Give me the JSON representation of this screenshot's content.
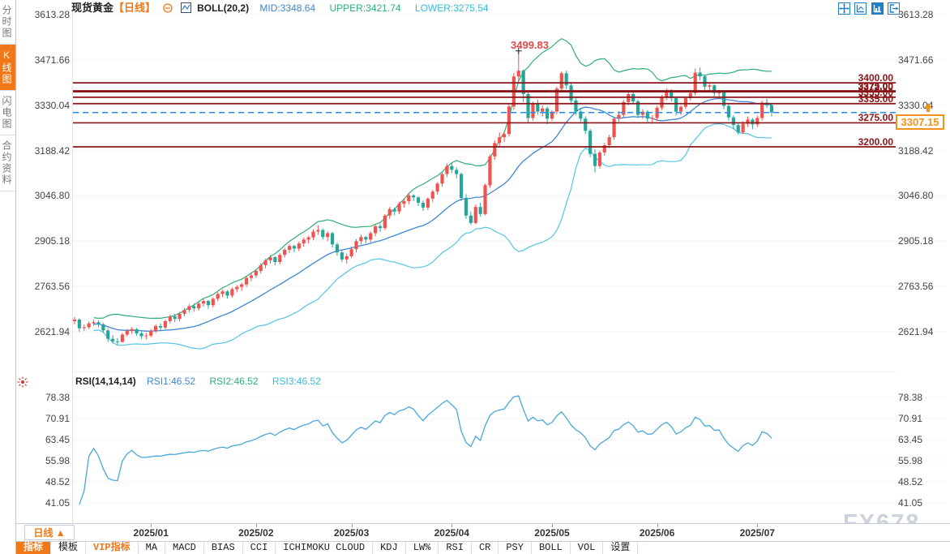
{
  "header": {
    "symbol": "现货黄金",
    "period_tag": "【日线】",
    "indicator": "BOLL(20,2)",
    "mid_label": "MID:3348.64",
    "upper_label": "UPPER:3421.74",
    "lower_label": "LOWER:3275.54"
  },
  "window_icons": [
    {
      "name": "pan-crosshair-icon"
    },
    {
      "name": "fit-axis-icon"
    },
    {
      "name": "bar-axis-icon",
      "active": true
    },
    {
      "name": "exit-right-icon"
    }
  ],
  "sidebar": {
    "tabs": [
      {
        "label": "分时图",
        "active": false
      },
      {
        "label": "K线图",
        "active": true
      },
      {
        "label": "闪电图",
        "active": false
      },
      {
        "label": "合约资料",
        "active": false
      }
    ]
  },
  "price_axis_labels": [
    3613.28,
    3471.66,
    3330.04,
    3188.42,
    3046.8,
    2905.18,
    2763.56,
    2621.94
  ],
  "rsi_axis_labels": [
    78.38,
    70.91,
    63.45,
    55.98,
    48.52,
    41.05
  ],
  "rsi_header": {
    "title": "RSI(14,14,14)",
    "rsi1": "RSI1:46.52",
    "rsi2": "RSI2:46.52",
    "rsi3": "RSI3:46.52"
  },
  "current_price": "3307.15",
  "peak_annotation": "3499.83",
  "xaxis": {
    "period_button": "日线",
    "period_arrow": "▲",
    "months": [
      "2025/01",
      "2025/02",
      "2025/03",
      "2025/04",
      "2025/05",
      "2025/06",
      "2025/07"
    ]
  },
  "toolbar": {
    "items": [
      {
        "label": "指标",
        "state": "active"
      },
      {
        "label": "模板",
        "state": "normal"
      },
      {
        "label": "VIP指标",
        "state": "vip"
      },
      {
        "label": "MA",
        "state": "normal"
      },
      {
        "label": "MACD",
        "state": "normal"
      },
      {
        "label": "BIAS",
        "state": "normal"
      },
      {
        "label": "CCI",
        "state": "normal"
      },
      {
        "label": "ICHIMOKU CLOUD",
        "state": "normal"
      },
      {
        "label": "KDJ",
        "state": "normal"
      },
      {
        "label": "LW%",
        "state": "normal"
      },
      {
        "label": "RSI",
        "state": "normal"
      },
      {
        "label": "CR",
        "state": "normal"
      },
      {
        "label": "PSY",
        "state": "normal"
      },
      {
        "label": "BOLL",
        "state": "normal"
      },
      {
        "label": "VOL",
        "state": "normal"
      },
      {
        "label": "设置",
        "state": "normal"
      }
    ]
  },
  "watermark": "FX678",
  "colors": {
    "accent_orange": "#f07818",
    "up_candle": "#ef5350",
    "down_candle": "#26a69a",
    "boll_mid": "#3d87d3",
    "boll_upper": "#2fae77",
    "boll_lower": "#52c5e6",
    "rsi_line": "#49a8d8",
    "level_line": "#8a1518",
    "current_line": "#2e8be8",
    "level_text": "#8a1518",
    "tag_orange": "#f59219",
    "grid": "#dcdcdc"
  },
  "chart_data": {
    "type": "candlestick",
    "instrument": "现货黄金",
    "timeframe": "日线",
    "price_axis_range": [
      2621.94,
      3613.28
    ],
    "rsi_axis_range": [
      41.05,
      78.38
    ],
    "overlays": {
      "bollinger": {
        "period": 20,
        "mult": 2,
        "mid": 3348.64,
        "upper": 3421.74,
        "lower": 3275.54
      }
    },
    "sub_indicator": {
      "type": "RSI",
      "periods": [
        14,
        14,
        14
      ],
      "values": [
        46.52,
        46.52,
        46.52
      ]
    },
    "horizontal_levels": [
      3400.0,
      3375.0,
      3372.0,
      3355.0,
      3335.0,
      3275.0,
      3200.0
    ],
    "last_price": 3307.15,
    "peak_high": 3499.83,
    "month_ticks": [
      {
        "label": "2025/01",
        "index": 16
      },
      {
        "label": "2025/02",
        "index": 38
      },
      {
        "label": "2025/03",
        "index": 58
      },
      {
        "label": "2025/04",
        "index": 79
      },
      {
        "label": "2025/05",
        "index": 100
      },
      {
        "label": "2025/06",
        "index": 122
      },
      {
        "label": "2025/07",
        "index": 143
      }
    ],
    "candles": [
      [
        2655,
        2668,
        2645,
        2660
      ],
      [
        2660,
        2664,
        2622,
        2633
      ],
      [
        2633,
        2645,
        2624,
        2636
      ],
      [
        2636,
        2654,
        2630,
        2648
      ],
      [
        2648,
        2660,
        2640,
        2652
      ],
      [
        2652,
        2658,
        2636,
        2645
      ],
      [
        2645,
        2650,
        2618,
        2626
      ],
      [
        2626,
        2632,
        2590,
        2600
      ],
      [
        2600,
        2612,
        2585,
        2592
      ],
      [
        2592,
        2602,
        2581,
        2590
      ],
      [
        2590,
        2618,
        2588,
        2613
      ],
      [
        2613,
        2630,
        2608,
        2624
      ],
      [
        2624,
        2636,
        2615,
        2630
      ],
      [
        2630,
        2634,
        2610,
        2617
      ],
      [
        2617,
        2622,
        2600,
        2608
      ],
      [
        2608,
        2618,
        2598,
        2610
      ],
      [
        2610,
        2630,
        2605,
        2625
      ],
      [
        2625,
        2646,
        2618,
        2640
      ],
      [
        2640,
        2648,
        2626,
        2635
      ],
      [
        2635,
        2660,
        2630,
        2655
      ],
      [
        2655,
        2676,
        2648,
        2670
      ],
      [
        2670,
        2678,
        2652,
        2662
      ],
      [
        2662,
        2684,
        2655,
        2678
      ],
      [
        2678,
        2696,
        2670,
        2690
      ],
      [
        2690,
        2708,
        2682,
        2702
      ],
      [
        2702,
        2710,
        2685,
        2695
      ],
      [
        2695,
        2716,
        2688,
        2710
      ],
      [
        2710,
        2724,
        2700,
        2718
      ],
      [
        2718,
        2722,
        2694,
        2705
      ],
      [
        2705,
        2730,
        2698,
        2725
      ],
      [
        2725,
        2746,
        2718,
        2740
      ],
      [
        2740,
        2754,
        2730,
        2748
      ],
      [
        2748,
        2752,
        2726,
        2735
      ],
      [
        2735,
        2760,
        2728,
        2755
      ],
      [
        2755,
        2768,
        2745,
        2762
      ],
      [
        2762,
        2775,
        2750,
        2770
      ],
      [
        2770,
        2795,
        2762,
        2790
      ],
      [
        2790,
        2804,
        2780,
        2798
      ],
      [
        2798,
        2818,
        2790,
        2812
      ],
      [
        2812,
        2836,
        2804,
        2830
      ],
      [
        2830,
        2850,
        2820,
        2845
      ],
      [
        2845,
        2862,
        2835,
        2855
      ],
      [
        2855,
        2858,
        2830,
        2840
      ],
      [
        2840,
        2868,
        2832,
        2862
      ],
      [
        2862,
        2884,
        2854,
        2878
      ],
      [
        2878,
        2896,
        2868,
        2890
      ],
      [
        2890,
        2894,
        2870,
        2882
      ],
      [
        2882,
        2904,
        2874,
        2898
      ],
      [
        2898,
        2916,
        2888,
        2910
      ],
      [
        2910,
        2922,
        2898,
        2917
      ],
      [
        2917,
        2942,
        2908,
        2935
      ],
      [
        2935,
        2955,
        2925,
        2940
      ],
      [
        2940,
        2945,
        2910,
        2918
      ],
      [
        2918,
        2936,
        2905,
        2930
      ],
      [
        2930,
        2934,
        2885,
        2895
      ],
      [
        2895,
        2900,
        2860,
        2870
      ],
      [
        2870,
        2876,
        2840,
        2848
      ],
      [
        2848,
        2866,
        2835,
        2858
      ],
      [
        2858,
        2888,
        2852,
        2880
      ],
      [
        2880,
        2912,
        2870,
        2905
      ],
      [
        2905,
        2926,
        2895,
        2918
      ],
      [
        2918,
        2922,
        2898,
        2910
      ],
      [
        2910,
        2936,
        2902,
        2930
      ],
      [
        2930,
        2958,
        2920,
        2952
      ],
      [
        2952,
        2960,
        2934,
        2946
      ],
      [
        2946,
        2990,
        2940,
        2985
      ],
      [
        2985,
        3012,
        2975,
        3005
      ],
      [
        3005,
        3010,
        2986,
        2998
      ],
      [
        2998,
        3028,
        2990,
        3022
      ],
      [
        3022,
        3038,
        3010,
        3030
      ],
      [
        3030,
        3056,
        3020,
        3048
      ],
      [
        3048,
        3052,
        3030,
        3042
      ],
      [
        3042,
        3046,
        3015,
        3025
      ],
      [
        3025,
        3032,
        3000,
        3010
      ],
      [
        3010,
        3042,
        3002,
        3038
      ],
      [
        3038,
        3066,
        3028,
        3060
      ],
      [
        3060,
        3090,
        3050,
        3085
      ],
      [
        3085,
        3120,
        3075,
        3115
      ],
      [
        3115,
        3148,
        3105,
        3140
      ],
      [
        3140,
        3150,
        3118,
        3128
      ],
      [
        3128,
        3136,
        3102,
        3115
      ],
      [
        3115,
        3120,
        3030,
        3040
      ],
      [
        3040,
        3052,
        2975,
        2985
      ],
      [
        2985,
        2998,
        2956,
        2962
      ],
      [
        2962,
        3020,
        2958,
        3012
      ],
      [
        3012,
        3025,
        2982,
        2990
      ],
      [
        2990,
        3085,
        2986,
        3080
      ],
      [
        3080,
        3176,
        3072,
        3170
      ],
      [
        3170,
        3220,
        3160,
        3212
      ],
      [
        3212,
        3245,
        3200,
        3230
      ],
      [
        3230,
        3248,
        3215,
        3240
      ],
      [
        3240,
        3334,
        3232,
        3326
      ],
      [
        3326,
        3430,
        3316,
        3420
      ],
      [
        3420,
        3499.83,
        3405,
        3438
      ],
      [
        3438,
        3442,
        3340,
        3365
      ],
      [
        3365,
        3370,
        3275,
        3290
      ],
      [
        3290,
        3342,
        3282,
        3335
      ],
      [
        3335,
        3348,
        3300,
        3310
      ],
      [
        3310,
        3330,
        3295,
        3320
      ],
      [
        3320,
        3326,
        3270,
        3288
      ],
      [
        3288,
        3315,
        3280,
        3310
      ],
      [
        3310,
        3388,
        3302,
        3382
      ],
      [
        3382,
        3435,
        3372,
        3430
      ],
      [
        3430,
        3438,
        3380,
        3392
      ],
      [
        3392,
        3398,
        3332,
        3345
      ],
      [
        3345,
        3352,
        3300,
        3310
      ],
      [
        3310,
        3318,
        3278,
        3288
      ],
      [
        3288,
        3295,
        3240,
        3250
      ],
      [
        3250,
        3256,
        3168,
        3178
      ],
      [
        3178,
        3192,
        3120,
        3140
      ],
      [
        3140,
        3188,
        3132,
        3182
      ],
      [
        3182,
        3212,
        3172,
        3205
      ],
      [
        3205,
        3238,
        3196,
        3230
      ],
      [
        3230,
        3292,
        3222,
        3288
      ],
      [
        3288,
        3312,
        3278,
        3300
      ],
      [
        3300,
        3346,
        3292,
        3340
      ],
      [
        3340,
        3370,
        3330,
        3365
      ],
      [
        3365,
        3372,
        3332,
        3342
      ],
      [
        3342,
        3348,
        3290,
        3300
      ],
      [
        3300,
        3318,
        3288,
        3310
      ],
      [
        3310,
        3315,
        3278,
        3288
      ],
      [
        3288,
        3298,
        3272,
        3290
      ],
      [
        3290,
        3328,
        3282,
        3322
      ],
      [
        3322,
        3362,
        3315,
        3355
      ],
      [
        3355,
        3382,
        3346,
        3375
      ],
      [
        3375,
        3380,
        3342,
        3352
      ],
      [
        3352,
        3358,
        3298,
        3310
      ],
      [
        3310,
        3330,
        3300,
        3325
      ],
      [
        3325,
        3358,
        3318,
        3352
      ],
      [
        3352,
        3375,
        3344,
        3368
      ],
      [
        3368,
        3445,
        3360,
        3432
      ],
      [
        3432,
        3448,
        3408,
        3420
      ],
      [
        3420,
        3426,
        3378,
        3388
      ],
      [
        3388,
        3400,
        3375,
        3392
      ],
      [
        3392,
        3396,
        3355,
        3368
      ],
      [
        3368,
        3378,
        3352,
        3370
      ],
      [
        3370,
        3374,
        3318,
        3328
      ],
      [
        3328,
        3334,
        3282,
        3292
      ],
      [
        3292,
        3298,
        3255,
        3268
      ],
      [
        3268,
        3275,
        3238,
        3245
      ],
      [
        3245,
        3280,
        3240,
        3272
      ],
      [
        3272,
        3295,
        3262,
        3285
      ],
      [
        3285,
        3290,
        3255,
        3270
      ],
      [
        3270,
        3298,
        3262,
        3290
      ],
      [
        3290,
        3345,
        3282,
        3338
      ],
      [
        3338,
        3350,
        3322,
        3330
      ],
      [
        3330,
        3336,
        3295,
        3307.15
      ]
    ]
  }
}
